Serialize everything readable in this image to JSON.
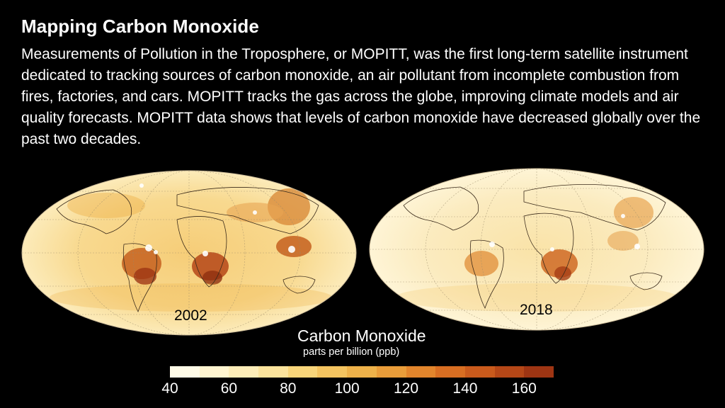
{
  "header": {
    "title": "Mapping Carbon Monoxide",
    "description": "Measurements of Pollution in the Troposphere, or MOPITT, was the first long-term satellite instrument dedicated to tracking sources of carbon monoxide, an air pollutant from incomplete combustion from fires, factories, and cars. MOPITT tracks the gas across the globe, improving climate models and air quality forecasts. MOPITT data shows that levels of carbon monoxide have decreased globally over the past two decades."
  },
  "maps": [
    {
      "year": "2002"
    },
    {
      "year": "2018"
    }
  ],
  "legend": {
    "title": "Carbon Monoxide",
    "units": "parts per billion (ppb)",
    "ticks": [
      "40",
      "60",
      "80",
      "100",
      "120",
      "140",
      "160"
    ],
    "range": [
      40,
      170
    ],
    "colors": [
      "#fffbe8",
      "#fff5d0",
      "#fdedb8",
      "#fbe39c",
      "#f8d57a",
      "#f4c460",
      "#eeb24a",
      "#e99d3a",
      "#e2852c",
      "#d86e22",
      "#c95a1c",
      "#b54717",
      "#9e3513"
    ]
  }
}
